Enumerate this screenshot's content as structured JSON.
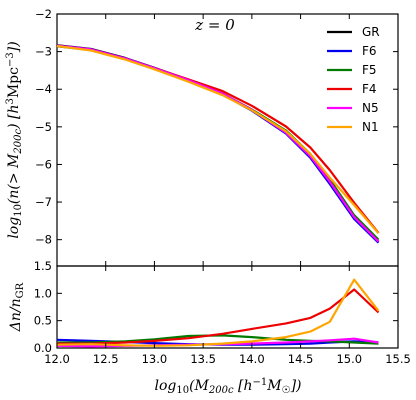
{
  "chart_data": [
    {
      "type": "line",
      "annotation": "z = 0",
      "ylabel": "log10(n(> M200c) [h^3 Mpc^-3])",
      "xlim": [
        12.0,
        15.5
      ],
      "ylim": [
        -8.7,
        -2.0
      ],
      "xticks": [
        "12.0",
        "12.5",
        "13.0",
        "13.5",
        "14.0",
        "14.5",
        "15.0",
        "15.5"
      ],
      "yticks": [
        "-2",
        "-3",
        "-4",
        "-5",
        "-6",
        "-7",
        "-8"
      ],
      "legend": "top-right",
      "x": [
        12.0,
        12.35,
        12.7,
        13.0,
        13.35,
        13.7,
        14.0,
        14.35,
        14.6,
        14.8,
        15.05,
        15.3
      ],
      "series": [
        {
          "name": "GR",
          "color": "#000000",
          "values": [
            -2.83,
            -2.93,
            -3.17,
            -3.43,
            -3.75,
            -4.12,
            -4.55,
            -5.15,
            -5.78,
            -6.45,
            -7.42,
            -8.05
          ]
        },
        {
          "name": "F6",
          "color": "#0000ee",
          "values": [
            -2.84,
            -2.94,
            -3.18,
            -3.44,
            -3.77,
            -4.14,
            -4.57,
            -5.18,
            -5.82,
            -6.52,
            -7.45,
            -8.08
          ]
        },
        {
          "name": "F5",
          "color": "#007a00",
          "values": [
            -2.86,
            -2.96,
            -3.2,
            -3.46,
            -3.78,
            -4.12,
            -4.54,
            -5.1,
            -5.72,
            -6.4,
            -7.35,
            -8.0
          ]
        },
        {
          "name": "F4",
          "color": "#ee0000",
          "values": [
            -2.85,
            -2.95,
            -3.19,
            -3.44,
            -3.74,
            -4.05,
            -4.44,
            -4.99,
            -5.55,
            -6.15,
            -7.02,
            -7.82
          ]
        },
        {
          "name": "N5",
          "color": "#ff00ff",
          "values": [
            -2.84,
            -2.94,
            -3.18,
            -3.44,
            -3.76,
            -4.12,
            -4.55,
            -5.16,
            -5.78,
            -6.46,
            -7.4,
            -8.05
          ]
        },
        {
          "name": "N1",
          "color": "#ffa500",
          "values": [
            -2.85,
            -2.97,
            -3.21,
            -3.47,
            -3.8,
            -4.16,
            -4.56,
            -5.12,
            -5.72,
            -6.35,
            -7.08,
            -7.83
          ]
        }
      ]
    },
    {
      "type": "line",
      "xlabel": "log10(M200c [h^-1 M_sun])",
      "ylabel": "Δn / n_GR",
      "xlim": [
        12.0,
        15.5
      ],
      "ylim": [
        0.0,
        1.5
      ],
      "xticks": [
        "12.0",
        "12.5",
        "13.0",
        "13.5",
        "14.0",
        "14.5",
        "15.0",
        "15.5"
      ],
      "yticks": [
        "0.0",
        "0.5",
        "1.0",
        "1.5"
      ],
      "x": [
        12.0,
        12.35,
        12.7,
        13.0,
        13.35,
        13.7,
        14.0,
        14.35,
        14.6,
        14.8,
        15.05,
        15.3
      ],
      "series": [
        {
          "name": "F6",
          "color": "#0000ee",
          "values": [
            0.15,
            0.13,
            0.11,
            0.09,
            0.07,
            0.06,
            0.06,
            0.07,
            0.08,
            0.1,
            0.12,
            0.1
          ]
        },
        {
          "name": "F5",
          "color": "#007a00",
          "values": [
            0.1,
            0.1,
            0.12,
            0.16,
            0.22,
            0.23,
            0.2,
            0.15,
            0.13,
            0.12,
            0.1,
            0.08
          ]
        },
        {
          "name": "F4",
          "color": "#ee0000",
          "values": [
            0.08,
            0.08,
            0.1,
            0.13,
            0.18,
            0.26,
            0.35,
            0.45,
            0.55,
            0.72,
            1.07,
            0.65
          ]
        },
        {
          "name": "N5",
          "color": "#ff00ff",
          "values": [
            0.04,
            0.03,
            0.04,
            0.05,
            0.06,
            0.07,
            0.08,
            0.1,
            0.12,
            0.14,
            0.17,
            0.1
          ]
        },
        {
          "name": "N1",
          "color": "#ffa500",
          "values": [
            0.06,
            0.07,
            0.05,
            0.04,
            0.05,
            0.08,
            0.12,
            0.2,
            0.3,
            0.48,
            1.25,
            0.68
          ]
        }
      ]
    }
  ]
}
